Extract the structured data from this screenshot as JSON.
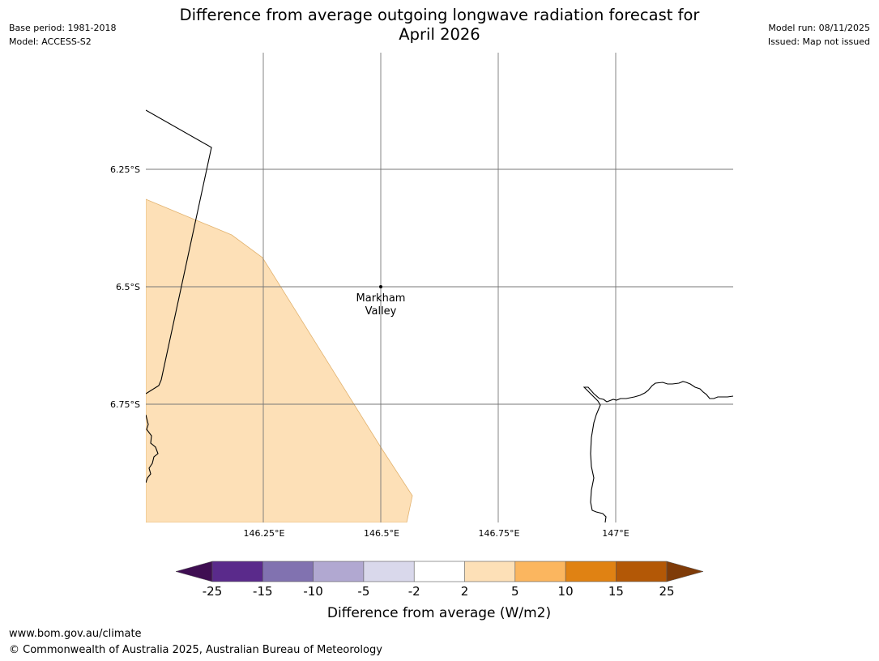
{
  "header": {
    "base_period": "Base period: 1981-2018",
    "model": "Model: ACCESS-S2",
    "model_run": "Model run: 08/11/2025",
    "issued": "Issued: Map not issued",
    "title_line1": "Difference from average outgoing longwave radiation forecast for",
    "title_line2": "April 2026"
  },
  "map": {
    "lat_labels": [
      "6.25°S",
      "6.5°S",
      "6.75°S"
    ],
    "lon_labels": [
      "146.25°E",
      "146.5°E",
      "146.75°E",
      "147°E"
    ],
    "place": {
      "name_line1": "Markham",
      "name_line2": "Valley"
    },
    "fill_color": "#fde0b7"
  },
  "legend": {
    "title": "Difference from average (W/m2)",
    "ticks": [
      "-25",
      "-15",
      "-10",
      "-5",
      "-2",
      "2",
      "5",
      "10",
      "15",
      "25"
    ],
    "colors": [
      "#3f0e52",
      "#5a2a8b",
      "#8172b0",
      "#b1a8d1",
      "#d9d8eb",
      "#ffffff",
      "#fde0b7",
      "#fbb65f",
      "#e08213",
      "#b35806",
      "#7f3b08"
    ]
  },
  "footer": {
    "url": "www.bom.gov.au/climate",
    "copyright": "© Commonwealth of Australia 2025, Australian Bureau of Meteorology"
  }
}
